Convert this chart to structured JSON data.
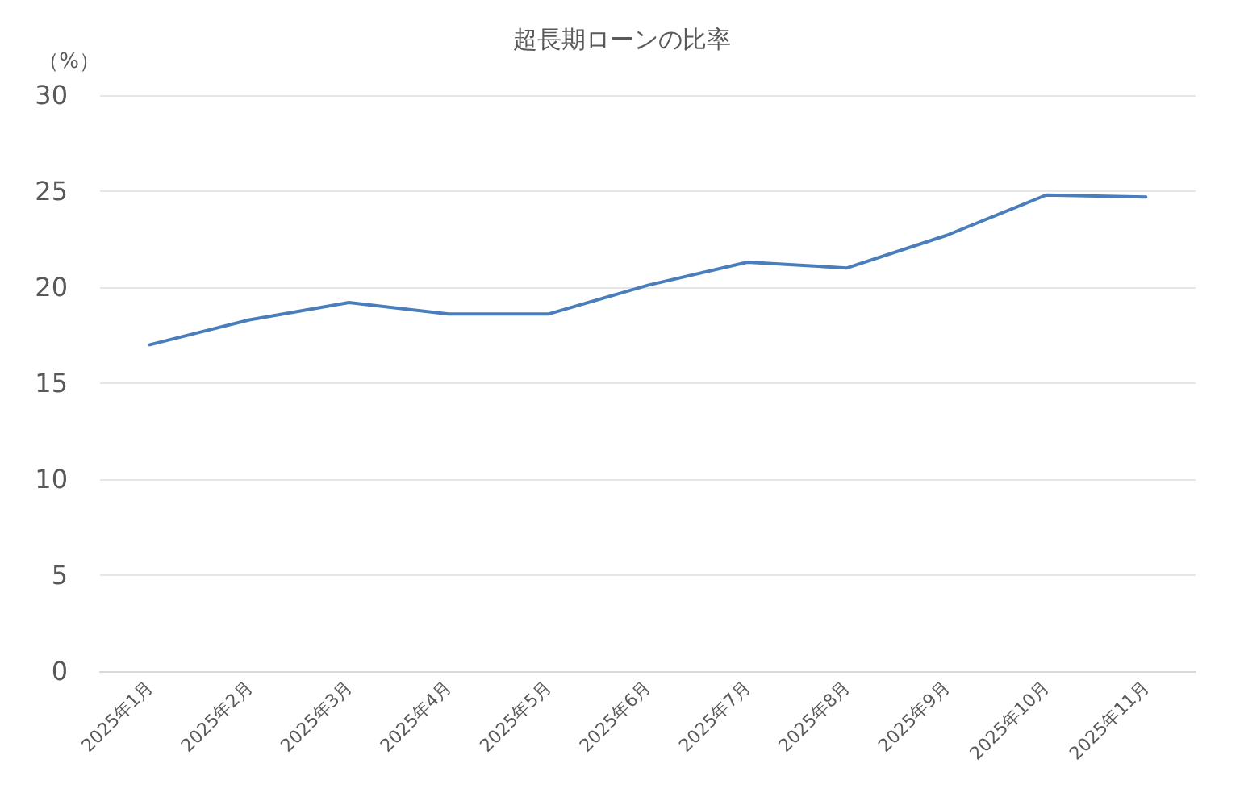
{
  "chart_data": {
    "type": "line",
    "title": "超長期ローンの比率",
    "ylabel": "（%）",
    "categories": [
      "2025年1月",
      "2025年2月",
      "2025年3月",
      "2025年4月",
      "2025年5月",
      "2025年6月",
      "2025年7月",
      "2025年8月",
      "2025年9月",
      "2025年10月",
      "2025年11月"
    ],
    "series": [
      {
        "color": "#4a7ebb",
        "values": [
          17.0,
          18.3,
          19.2,
          18.6,
          18.6,
          20.1,
          21.3,
          21.0,
          22.7,
          24.8,
          24.7
        ]
      }
    ],
    "ylim": [
      0,
      30
    ],
    "yticks": [
      0,
      5,
      10,
      15,
      20,
      25,
      30
    ],
    "grid": "y",
    "marker": "none",
    "line_style": "solid"
  }
}
